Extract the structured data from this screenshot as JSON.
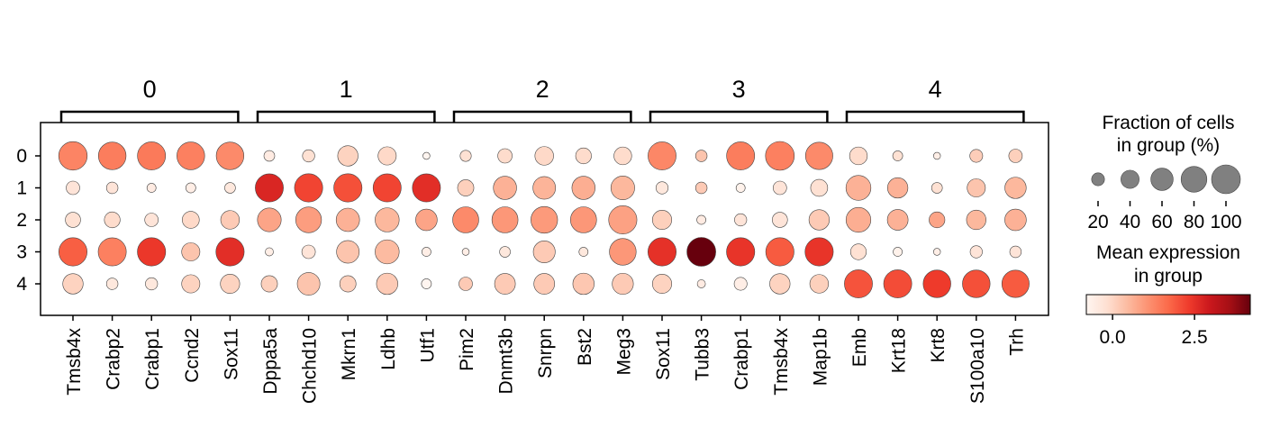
{
  "chart_data": {
    "type": "dotplot",
    "groups": [
      {
        "label": "0",
        "genes": [
          "Tmsb4x",
          "Crabp2",
          "Crabp1",
          "Ccnd2",
          "Sox11"
        ]
      },
      {
        "label": "1",
        "genes": [
          "Dppa5a",
          "Chchd10",
          "Mkrn1",
          "Ldhb",
          "Utf1"
        ]
      },
      {
        "label": "2",
        "genes": [
          "Pim2",
          "Dnmt3b",
          "Snrpn",
          "Bst2",
          "Meg3"
        ]
      },
      {
        "label": "3",
        "genes": [
          "Sox11",
          "Tubb3",
          "Crabp1",
          "Tmsb4x",
          "Map1b"
        ]
      },
      {
        "label": "4",
        "genes": [
          "Emb",
          "Krt18",
          "Krt8",
          "S100a10",
          "Trh"
        ]
      }
    ],
    "rows": [
      "0",
      "1",
      "2",
      "3",
      "4"
    ],
    "fraction": [
      [
        98,
        92,
        95,
        93,
        92,
        14,
        18,
        50,
        40,
        6,
        15,
        25,
        42,
        30,
        38,
        95,
        16,
        95,
        100,
        90,
        38,
        12,
        6,
        20,
        22
      ],
      [
        22,
        16,
        10,
        12,
        14,
        95,
        96,
        96,
        95,
        95,
        32,
        65,
        62,
        65,
        68,
        18,
        16,
        10,
        22,
        35,
        75,
        50,
        14,
        40,
        55
      ],
      [
        28,
        30,
        22,
        35,
        42,
        68,
        80,
        66,
        70,
        56,
        82,
        82,
        86,
        82,
        96,
        45,
        10,
        18,
        28,
        50,
        74,
        52,
        30,
        46,
        56
      ],
      [
        96,
        95,
        96,
        40,
        96,
        8,
        22,
        62,
        70,
        10,
        6,
        14,
        58,
        10,
        86,
        96,
        100,
        96,
        96,
        96,
        30,
        10,
        6,
        18,
        16
      ],
      [
        50,
        16,
        18,
        40,
        45,
        32,
        62,
        32,
        55,
        12,
        22,
        52,
        52,
        55,
        54,
        45,
        8,
        20,
        50,
        42,
        95,
        95,
        92,
        92,
        90
      ]
    ],
    "expression": [
      [
        1.3,
        1.4,
        1.45,
        1.35,
        1.2,
        -0.5,
        -0.2,
        0.05,
        -0.05,
        -0.8,
        -0.2,
        -0.1,
        -0.05,
        -0.1,
        -0.1,
        1.25,
        0.3,
        1.4,
        1.35,
        1.2,
        -0.1,
        -0.2,
        -0.6,
        0.15,
        0.1
      ],
      [
        -0.3,
        -0.3,
        -0.5,
        -0.6,
        -0.4,
        2.7,
        2.2,
        2.05,
        2.2,
        2.55,
        0.1,
        0.6,
        0.55,
        0.65,
        0.5,
        -0.4,
        0.2,
        -0.7,
        -0.3,
        -0.2,
        0.6,
        0.6,
        -0.2,
        0.3,
        0.5
      ],
      [
        -0.2,
        -0.1,
        -0.3,
        -0.05,
        0.2,
        0.8,
        0.9,
        0.6,
        0.5,
        0.8,
        1.2,
        1.0,
        0.95,
        1.0,
        0.85,
        0.1,
        -0.5,
        -0.3,
        -0.3,
        0.2,
        0.65,
        0.6,
        0.8,
        0.5,
        0.6
      ],
      [
        1.85,
        1.35,
        2.4,
        0.3,
        2.55,
        -0.6,
        -0.3,
        0.3,
        0.45,
        -0.6,
        -0.6,
        -0.4,
        0.2,
        -0.4,
        1.0,
        2.5,
        4.2,
        2.45,
        1.9,
        2.45,
        -0.2,
        -0.7,
        -0.6,
        -0.3,
        -0.3
      ],
      [
        0.05,
        -0.4,
        -0.4,
        0.05,
        0.05,
        0.1,
        0.3,
        0.1,
        0.2,
        -0.8,
        0.2,
        0.2,
        0.2,
        0.25,
        0.2,
        0.05,
        -0.5,
        -0.6,
        0.05,
        0.1,
        2.0,
        2.1,
        2.35,
        2.05,
        1.9
      ]
    ],
    "size_legend": {
      "title_line1": "Fraction of cells",
      "title_line2": "in group (%)",
      "ticks": [
        20,
        40,
        60,
        80,
        100
      ],
      "tick_labels": [
        "20",
        "40",
        "60",
        "80",
        "100"
      ]
    },
    "color_legend": {
      "title_line1": "Mean expression",
      "title_line2": "in group",
      "range": [
        -0.8,
        4.2
      ],
      "ticks": [
        0.0,
        2.5
      ],
      "tick_labels": [
        "0.0",
        "2.5"
      ]
    },
    "colormap": [
      "#fff5f0",
      "#fee0d2",
      "#fcbba1",
      "#fc9272",
      "#fb6a4a",
      "#ef3b2c",
      "#cb181d",
      "#a50f15",
      "#67000d"
    ]
  }
}
